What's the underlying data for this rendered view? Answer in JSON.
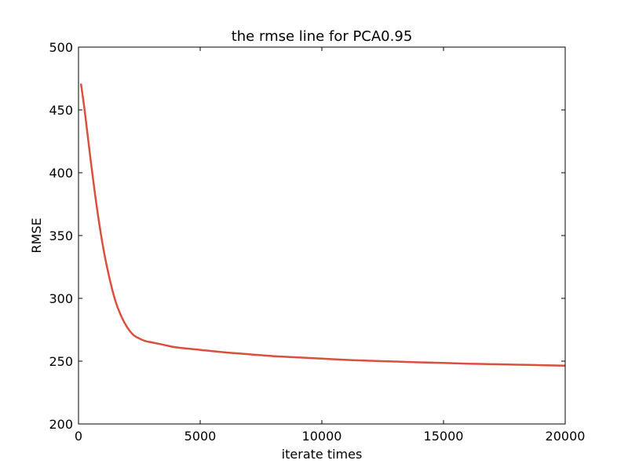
{
  "chart_data": {
    "type": "line",
    "title": "the rmse line for PCA0.95",
    "xlabel": "iterate times",
    "ylabel": "RMSE",
    "xlim": [
      0,
      20000
    ],
    "ylim": [
      200,
      500
    ],
    "xticks": [
      0,
      5000,
      10000,
      15000,
      20000
    ],
    "yticks": [
      200,
      250,
      300,
      350,
      400,
      450,
      500
    ],
    "grid": false,
    "series": [
      {
        "color": "#d9503d",
        "x": [
          100,
          250,
          500,
          750,
          1000,
          1250,
          1500,
          1750,
          2000,
          2250,
          2500,
          2750,
          3000,
          3500,
          4000,
          5000,
          6000,
          7000,
          8000,
          9000,
          10000,
          11000,
          12000,
          13000,
          14000,
          15000,
          16000,
          17000,
          18000,
          19000,
          20000
        ],
        "y": [
          471,
          450,
          410,
          373,
          342,
          318,
          299,
          286,
          277,
          271,
          268,
          266,
          265,
          263,
          261,
          259,
          257,
          255.5,
          254,
          253,
          252,
          251,
          250.3,
          249.7,
          249.1,
          248.6,
          248,
          247.6,
          247.2,
          246.8,
          246.4
        ]
      }
    ]
  }
}
